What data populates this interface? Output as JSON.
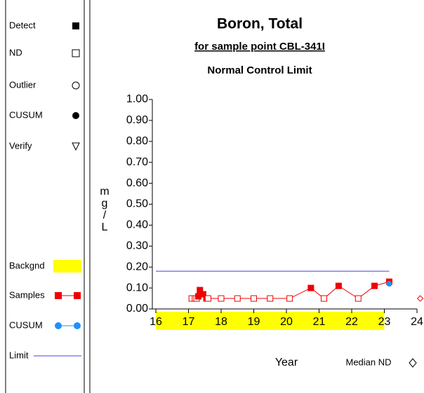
{
  "chart_data": {
    "type": "scatter",
    "title": "Boron, Total",
    "subtitle": "for sample point CBL-341I",
    "limit_title": "Normal Control Limit",
    "xlabel": "Year",
    "ylabel": "mg/L",
    "xlim": [
      16,
      24
    ],
    "xticks": [
      16,
      17,
      18,
      19,
      20,
      21,
      22,
      23,
      24
    ],
    "ylim": [
      0,
      1
    ],
    "yticks": [
      {
        "value": 0,
        "label": "0.00"
      },
      {
        "value": 0.1,
        "label": "0.10"
      },
      {
        "value": 0.2,
        "label": "0.20"
      },
      {
        "value": 0.3,
        "label": "0.30"
      },
      {
        "value": 0.4,
        "label": "0.40"
      },
      {
        "value": 0.5,
        "label": "0.50"
      },
      {
        "value": 0.6,
        "label": "0.60"
      },
      {
        "value": 0.7,
        "label": "0.70"
      },
      {
        "value": 0.8,
        "label": "0.80"
      },
      {
        "value": 0.9,
        "label": "0.90"
      },
      {
        "value": 1,
        "label": "1.00"
      }
    ],
    "background": {
      "x": [
        16,
        23
      ],
      "color": "#ffff00"
    },
    "limit": {
      "value": 0.18,
      "x": [
        16,
        23.15
      ],
      "color": "#4040e0"
    },
    "series": [
      {
        "name": "Samples",
        "color": "#ee0000",
        "x": [
          17.1,
          17.2,
          17.25,
          17.3,
          17.35,
          17.45,
          17.55,
          17.6,
          18.0,
          18.5,
          19.0,
          19.5,
          20.1,
          20.75,
          21.15,
          21.6,
          22.2,
          22.7,
          23.15
        ],
        "values": [
          0.05,
          0.05,
          0.05,
          0.06,
          0.09,
          0.07,
          0.05,
          0.05,
          0.05,
          0.05,
          0.05,
          0.05,
          0.05,
          0.1,
          0.05,
          0.11,
          0.05,
          0.11,
          0.13
        ],
        "detect": [
          false,
          false,
          false,
          true,
          true,
          true,
          true,
          false,
          false,
          false,
          false,
          false,
          false,
          true,
          false,
          true,
          false,
          true,
          true
        ]
      },
      {
        "name": "CUSUM",
        "color": "#1e90ff",
        "x": [
          23.15
        ],
        "values": [
          0.12
        ]
      }
    ],
    "median_nd": {
      "name": "Median ND",
      "x": 24.1,
      "value": 0.05,
      "color": "#ee0000"
    },
    "legend": {
      "symbols": [
        "Detect",
        "ND",
        "Outlier",
        "CUSUM",
        "Verify"
      ],
      "lines": [
        "Backgnd",
        "Samples",
        "CUSUM",
        "Limit"
      ]
    }
  }
}
